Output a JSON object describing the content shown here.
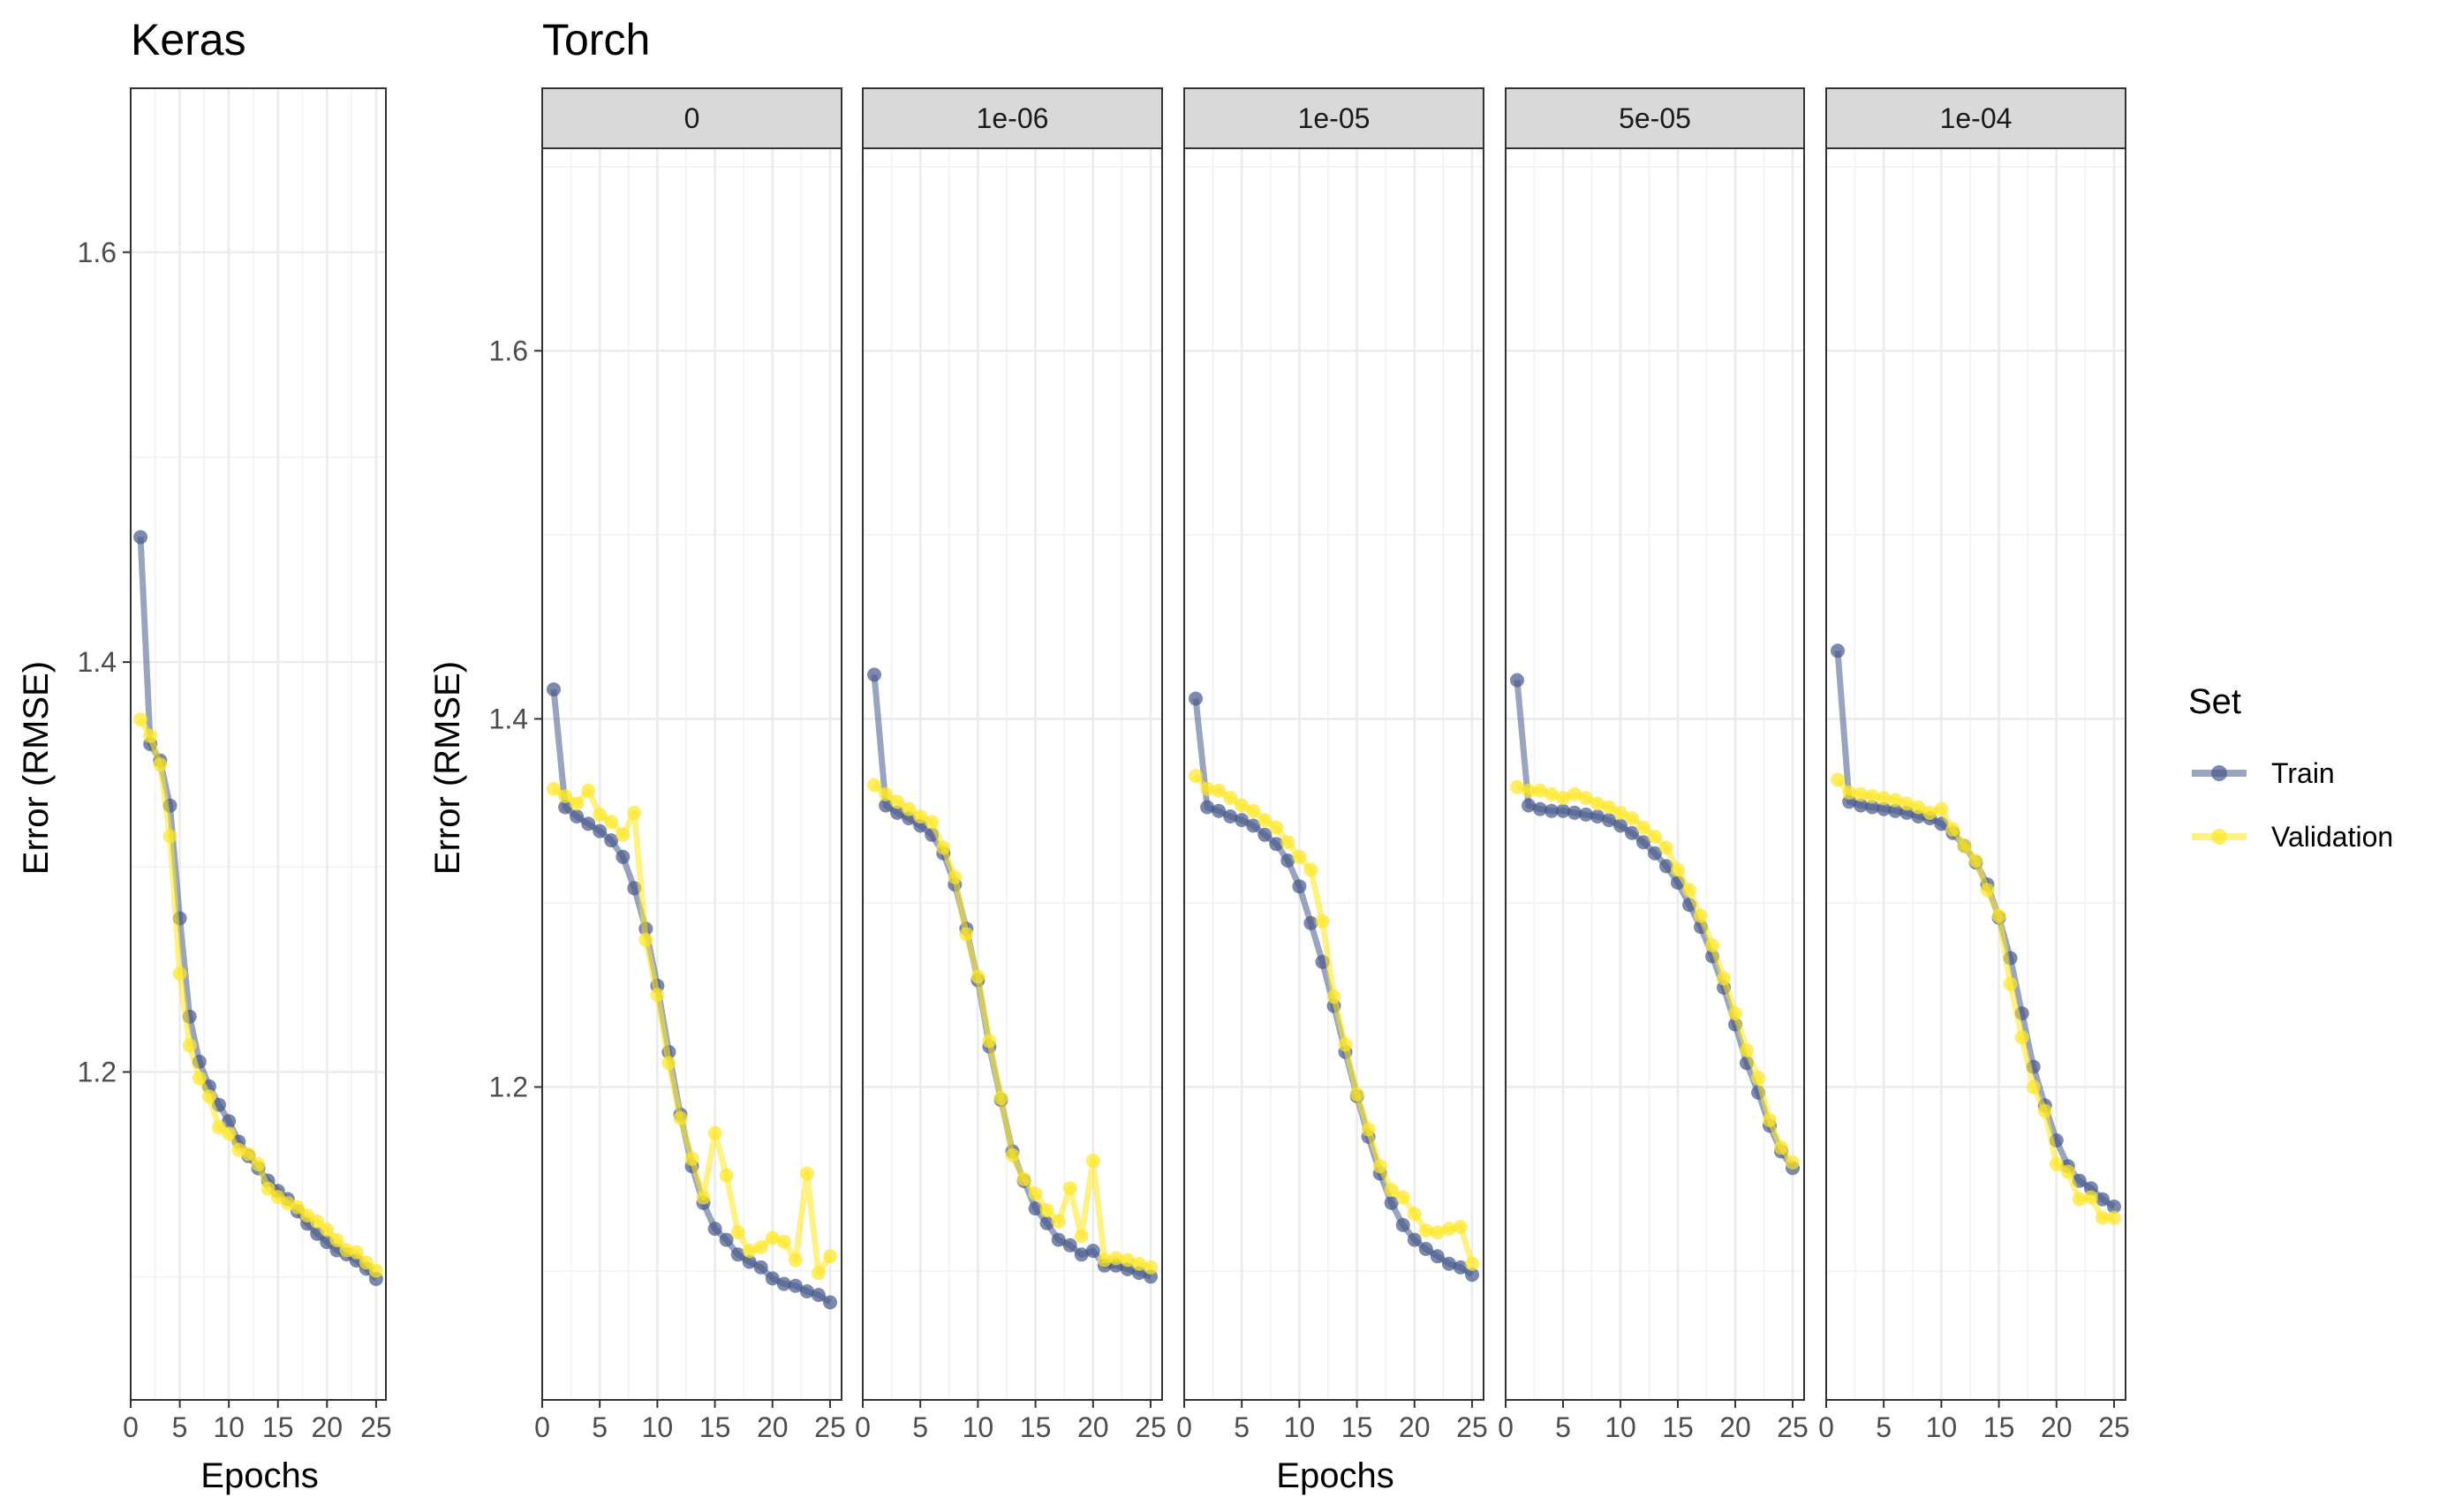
{
  "chart_data": {
    "type": "line",
    "legend": {
      "title": "Set",
      "placement": "right",
      "items": [
        {
          "label": "Train",
          "color": "#46598a"
        },
        {
          "label": "Validation",
          "color": "#fde725"
        }
      ]
    },
    "plots": [
      {
        "title": "Keras",
        "xlabel": "Epochs",
        "ylabel": "Error (RMSE)",
        "xlim": [
          0,
          26
        ],
        "ylim": [
          1.04,
          1.68
        ],
        "xticks": [
          "0",
          "5",
          "10",
          "15",
          "20",
          "25"
        ],
        "yticks": [
          "1.2",
          "1.4",
          "1.6"
        ],
        "panels": [
          {
            "strip": "",
            "series": [
              {
                "name": "Train",
                "x": [
                  1,
                  2,
                  3,
                  4,
                  5,
                  6,
                  7,
                  8,
                  9,
                  10,
                  11,
                  12,
                  13,
                  14,
                  15,
                  16,
                  17,
                  18,
                  19,
                  20,
                  21,
                  22,
                  23,
                  24,
                  25
                ],
                "values": [
                  1.461,
                  1.36,
                  1.352,
                  1.33,
                  1.275,
                  1.227,
                  1.205,
                  1.193,
                  1.184,
                  1.176,
                  1.166,
                  1.159,
                  1.153,
                  1.147,
                  1.142,
                  1.138,
                  1.132,
                  1.126,
                  1.121,
                  1.117,
                  1.113,
                  1.111,
                  1.108,
                  1.104,
                  1.099
                ]
              },
              {
                "name": "Validation",
                "x": [
                  1,
                  2,
                  3,
                  4,
                  5,
                  6,
                  7,
                  8,
                  9,
                  10,
                  11,
                  12,
                  13,
                  14,
                  15,
                  16,
                  17,
                  18,
                  19,
                  20,
                  21,
                  22,
                  23,
                  24,
                  25
                ],
                "values": [
                  1.372,
                  1.364,
                  1.35,
                  1.315,
                  1.248,
                  1.213,
                  1.197,
                  1.188,
                  1.173,
                  1.17,
                  1.162,
                  1.16,
                  1.155,
                  1.143,
                  1.139,
                  1.136,
                  1.134,
                  1.13,
                  1.127,
                  1.123,
                  1.118,
                  1.113,
                  1.112,
                  1.107,
                  1.103
                ]
              }
            ]
          }
        ]
      },
      {
        "title": "Torch",
        "xlabel": "Epochs",
        "ylabel": "Error (RMSE)",
        "xlim": [
          0,
          26
        ],
        "ylim": [
          1.03,
          1.71
        ],
        "xticks": [
          "0",
          "5",
          "10",
          "15",
          "20",
          "25"
        ],
        "yticks": [
          "1.2",
          "1.4",
          "1.6"
        ],
        "panels": [
          {
            "strip": "0",
            "series": [
              {
                "name": "Train",
                "x": [
                  1,
                  2,
                  3,
                  4,
                  5,
                  6,
                  7,
                  8,
                  9,
                  10,
                  11,
                  12,
                  13,
                  14,
                  15,
                  16,
                  17,
                  18,
                  19,
                  20,
                  21,
                  22,
                  23,
                  24,
                  25
                ],
                "values": [
                  1.416,
                  1.352,
                  1.347,
                  1.343,
                  1.339,
                  1.334,
                  1.325,
                  1.308,
                  1.286,
                  1.255,
                  1.219,
                  1.185,
                  1.157,
                  1.137,
                  1.123,
                  1.117,
                  1.109,
                  1.105,
                  1.102,
                  1.096,
                  1.093,
                  1.092,
                  1.089,
                  1.087,
                  1.083
                ]
              },
              {
                "name": "Validation",
                "x": [
                  1,
                  2,
                  3,
                  4,
                  5,
                  6,
                  7,
                  8,
                  9,
                  10,
                  11,
                  12,
                  13,
                  14,
                  15,
                  16,
                  17,
                  18,
                  19,
                  20,
                  21,
                  22,
                  23,
                  24,
                  25
                ],
                "values": [
                  1.362,
                  1.358,
                  1.354,
                  1.361,
                  1.348,
                  1.344,
                  1.337,
                  1.349,
                  1.28,
                  1.25,
                  1.213,
                  1.183,
                  1.161,
                  1.14,
                  1.175,
                  1.152,
                  1.121,
                  1.111,
                  1.113,
                  1.118,
                  1.116,
                  1.106,
                  1.153,
                  1.099,
                  1.108
                ]
              }
            ]
          },
          {
            "strip": "1e-06",
            "series": [
              {
                "name": "Train",
                "x": [
                  1,
                  2,
                  3,
                  4,
                  5,
                  6,
                  7,
                  8,
                  9,
                  10,
                  11,
                  12,
                  13,
                  14,
                  15,
                  16,
                  17,
                  18,
                  19,
                  20,
                  21,
                  22,
                  23,
                  24,
                  25
                ],
                "values": [
                  1.424,
                  1.353,
                  1.349,
                  1.346,
                  1.342,
                  1.337,
                  1.327,
                  1.31,
                  1.286,
                  1.258,
                  1.222,
                  1.193,
                  1.165,
                  1.149,
                  1.134,
                  1.126,
                  1.117,
                  1.114,
                  1.109,
                  1.111,
                  1.103,
                  1.103,
                  1.101,
                  1.099,
                  1.097
                ]
              },
              {
                "name": "Validation",
                "x": [
                  1,
                  2,
                  3,
                  4,
                  5,
                  6,
                  7,
                  8,
                  9,
                  10,
                  11,
                  12,
                  13,
                  14,
                  15,
                  16,
                  17,
                  18,
                  19,
                  20,
                  21,
                  22,
                  23,
                  24,
                  25
                ],
                "values": [
                  1.364,
                  1.359,
                  1.355,
                  1.351,
                  1.347,
                  1.344,
                  1.33,
                  1.314,
                  1.283,
                  1.26,
                  1.225,
                  1.194,
                  1.163,
                  1.15,
                  1.142,
                  1.133,
                  1.127,
                  1.145,
                  1.119,
                  1.16,
                  1.106,
                  1.107,
                  1.106,
                  1.104,
                  1.102
                ]
              }
            ]
          },
          {
            "strip": "1e-05",
            "series": [
              {
                "name": "Train",
                "x": [
                  1,
                  2,
                  3,
                  4,
                  5,
                  6,
                  7,
                  8,
                  9,
                  10,
                  11,
                  12,
                  13,
                  14,
                  15,
                  16,
                  17,
                  18,
                  19,
                  20,
                  21,
                  22,
                  23,
                  24,
                  25
                ],
                "values": [
                  1.411,
                  1.352,
                  1.35,
                  1.347,
                  1.345,
                  1.342,
                  1.337,
                  1.332,
                  1.323,
                  1.309,
                  1.289,
                  1.268,
                  1.244,
                  1.219,
                  1.195,
                  1.173,
                  1.153,
                  1.137,
                  1.125,
                  1.117,
                  1.112,
                  1.108,
                  1.104,
                  1.102,
                  1.098
                ]
              },
              {
                "name": "Validation",
                "x": [
                  1,
                  2,
                  3,
                  4,
                  5,
                  6,
                  7,
                  8,
                  9,
                  10,
                  11,
                  12,
                  13,
                  14,
                  15,
                  16,
                  17,
                  18,
                  19,
                  20,
                  21,
                  22,
                  23,
                  24,
                  25
                ],
                "values": [
                  1.369,
                  1.362,
                  1.361,
                  1.357,
                  1.353,
                  1.35,
                  1.345,
                  1.341,
                  1.333,
                  1.325,
                  1.318,
                  1.29,
                  1.249,
                  1.223,
                  1.196,
                  1.177,
                  1.157,
                  1.144,
                  1.14,
                  1.131,
                  1.122,
                  1.121,
                  1.123,
                  1.124,
                  1.104
                ]
              }
            ]
          },
          {
            "strip": "5e-05",
            "series": [
              {
                "name": "Train",
                "x": [
                  1,
                  2,
                  3,
                  4,
                  5,
                  6,
                  7,
                  8,
                  9,
                  10,
                  11,
                  12,
                  13,
                  14,
                  15,
                  16,
                  17,
                  18,
                  19,
                  20,
                  21,
                  22,
                  23,
                  24,
                  25
                ],
                "values": [
                  1.421,
                  1.353,
                  1.351,
                  1.35,
                  1.35,
                  1.349,
                  1.348,
                  1.347,
                  1.345,
                  1.342,
                  1.338,
                  1.333,
                  1.327,
                  1.32,
                  1.311,
                  1.299,
                  1.287,
                  1.271,
                  1.254,
                  1.234,
                  1.213,
                  1.197,
                  1.179,
                  1.165,
                  1.156
                ]
              },
              {
                "name": "Validation",
                "x": [
                  1,
                  2,
                  3,
                  4,
                  5,
                  6,
                  7,
                  8,
                  9,
                  10,
                  11,
                  12,
                  13,
                  14,
                  15,
                  16,
                  17,
                  18,
                  19,
                  20,
                  21,
                  22,
                  23,
                  24,
                  25
                ],
                "values": [
                  1.363,
                  1.361,
                  1.361,
                  1.359,
                  1.357,
                  1.359,
                  1.357,
                  1.354,
                  1.352,
                  1.349,
                  1.346,
                  1.341,
                  1.336,
                  1.33,
                  1.318,
                  1.307,
                  1.293,
                  1.277,
                  1.259,
                  1.24,
                  1.22,
                  1.205,
                  1.182,
                  1.167,
                  1.159
                ]
              }
            ]
          },
          {
            "strip": "1e-04",
            "series": [
              {
                "name": "Train",
                "x": [
                  1,
                  2,
                  3,
                  4,
                  5,
                  6,
                  7,
                  8,
                  9,
                  10,
                  11,
                  12,
                  13,
                  14,
                  15,
                  16,
                  17,
                  18,
                  19,
                  20,
                  21,
                  22,
                  23,
                  24,
                  25
                ],
                "values": [
                  1.437,
                  1.355,
                  1.353,
                  1.352,
                  1.351,
                  1.35,
                  1.349,
                  1.347,
                  1.346,
                  1.343,
                  1.338,
                  1.331,
                  1.322,
                  1.31,
                  1.292,
                  1.27,
                  1.24,
                  1.211,
                  1.19,
                  1.171,
                  1.157,
                  1.149,
                  1.145,
                  1.139,
                  1.135
                ]
              },
              {
                "name": "Validation",
                "x": [
                  1,
                  2,
                  3,
                  4,
                  5,
                  6,
                  7,
                  8,
                  9,
                  10,
                  11,
                  12,
                  13,
                  14,
                  15,
                  16,
                  17,
                  18,
                  19,
                  20,
                  21,
                  22,
                  23,
                  24,
                  25
                ],
                "values": [
                  1.367,
                  1.36,
                  1.359,
                  1.358,
                  1.357,
                  1.356,
                  1.354,
                  1.352,
                  1.349,
                  1.351,
                  1.34,
                  1.331,
                  1.323,
                  1.307,
                  1.293,
                  1.256,
                  1.227,
                  1.2,
                  1.187,
                  1.158,
                  1.154,
                  1.139,
                  1.14,
                  1.129,
                  1.129
                ]
              }
            ]
          }
        ]
      }
    ]
  }
}
